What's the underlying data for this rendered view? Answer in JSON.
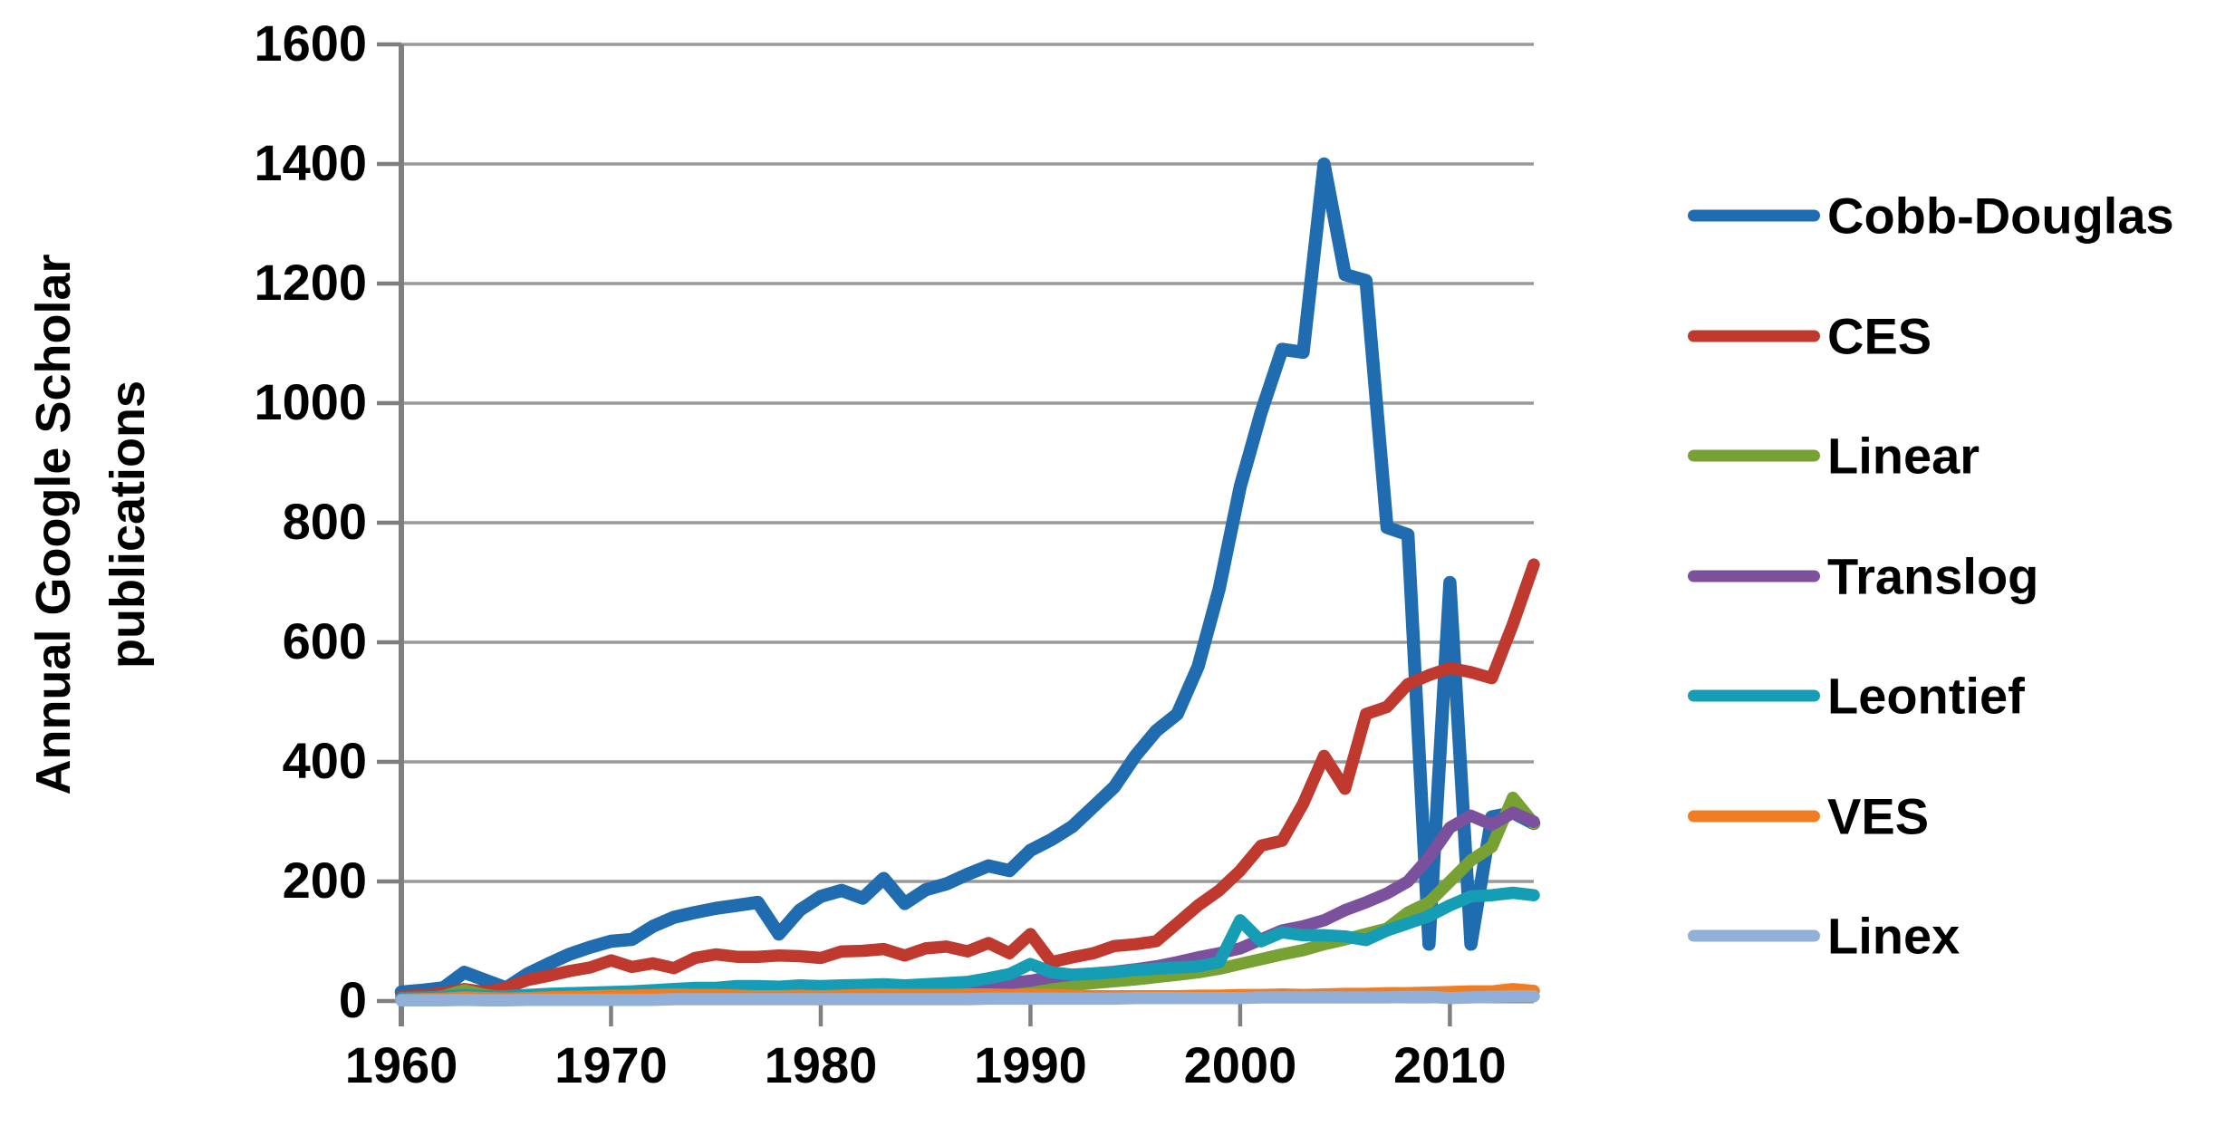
{
  "figure": {
    "kind": "excel-style line chart",
    "background": "#ffffff"
  },
  "colors": {
    "gridline": "#999999",
    "axis": "#7f7f7f",
    "text": "#000000",
    "background": "#ffffff"
  },
  "chart_data": {
    "type": "line",
    "title": "",
    "ylabel_lines": [
      "Annual Google Scholar",
      "publications"
    ],
    "xlabel": "",
    "xlim": [
      1960,
      2014
    ],
    "ylim": [
      0,
      1600
    ],
    "x_ticks": [
      1960,
      1970,
      1980,
      1990,
      2000,
      2010
    ],
    "y_ticks": [
      0,
      200,
      400,
      600,
      800,
      1000,
      1200,
      1400,
      1600
    ],
    "grid": "horizontal",
    "legend_position": "right",
    "x": [
      1960,
      1961,
      1962,
      1963,
      1964,
      1965,
      1966,
      1967,
      1968,
      1969,
      1970,
      1971,
      1972,
      1973,
      1974,
      1975,
      1976,
      1977,
      1978,
      1979,
      1980,
      1981,
      1982,
      1983,
      1984,
      1985,
      1986,
      1987,
      1988,
      1989,
      1990,
      1991,
      1992,
      1993,
      1994,
      1995,
      1996,
      1997,
      1998,
      1999,
      2000,
      2001,
      2002,
      2003,
      2004,
      2005,
      2006,
      2007,
      2008,
      2009,
      2010,
      2011,
      2012,
      2013,
      2014
    ],
    "series": [
      {
        "name": "Cobb-Douglas",
        "color": "#1f6cb0",
        "stroke_width": 14.5,
        "values": [
          15,
          18,
          22,
          48,
          35,
          22,
          45,
          62,
          78,
          90,
          100,
          103,
          125,
          140,
          148,
          155,
          160,
          165,
          112,
          152,
          175,
          185,
          172,
          205,
          163,
          186,
          196,
          212,
          226,
          218,
          252,
          270,
          292,
          325,
          358,
          410,
          452,
          480,
          560,
          690,
          860,
          985,
          1090,
          1085,
          1400,
          1215,
          1205,
          792,
          780,
          95,
          700,
          95,
          308,
          315,
          297
        ]
      },
      {
        "name": "CES",
        "color": "#c0392e",
        "stroke_width": 13.5,
        "values": [
          8,
          10,
          13,
          20,
          15,
          22,
          35,
          42,
          50,
          56,
          68,
          57,
          63,
          55,
          72,
          78,
          74,
          74,
          76,
          75,
          72,
          83,
          84,
          87,
          76,
          88,
          91,
          83,
          97,
          80,
          112,
          65,
          73,
          80,
          92,
          95,
          100,
          130,
          160,
          185,
          218,
          260,
          268,
          330,
          410,
          355,
          480,
          492,
          530,
          545,
          557,
          550,
          540,
          630,
          730
        ]
      },
      {
        "name": "Linear",
        "color": "#77a233",
        "stroke_width": 13.5,
        "values": [
          3,
          4,
          8,
          18,
          10,
          6,
          8,
          9,
          10,
          10,
          12,
          10,
          12,
          14,
          13,
          12,
          13,
          14,
          13,
          15,
          14,
          15,
          16,
          18,
          16,
          18,
          20,
          22,
          24,
          26,
          25,
          28,
          27,
          30,
          33,
          36,
          40,
          44,
          48,
          54,
          62,
          70,
          78,
          85,
          95,
          103,
          112,
          121,
          148,
          165,
          200,
          235,
          258,
          340,
          297
        ]
      },
      {
        "name": "Translog",
        "color": "#7b519e",
        "stroke_width": 13.5,
        "values": [
          2,
          2,
          3,
          5,
          4,
          4,
          5,
          6,
          7,
          8,
          9,
          9,
          10,
          11,
          12,
          12,
          13,
          14,
          15,
          16,
          18,
          19,
          20,
          21,
          20,
          22,
          23,
          25,
          27,
          30,
          34,
          40,
          44,
          46,
          49,
          53,
          58,
          65,
          73,
          80,
          88,
          103,
          118,
          125,
          135,
          152,
          165,
          180,
          200,
          240,
          290,
          310,
          295,
          315,
          300
        ]
      },
      {
        "name": "Leontief",
        "color": "#149db4",
        "stroke_width": 13.5,
        "values": [
          5,
          6,
          7,
          10,
          8,
          8,
          10,
          12,
          13,
          14,
          15,
          16,
          18,
          20,
          22,
          22,
          25,
          25,
          24,
          26,
          25,
          26,
          27,
          28,
          26,
          28,
          30,
          32,
          38,
          45,
          62,
          48,
          44,
          46,
          48,
          52,
          54,
          56,
          58,
          65,
          135,
          100,
          115,
          110,
          110,
          108,
          102,
          118,
          130,
          142,
          160,
          175,
          177,
          181,
          177
        ]
      },
      {
        "name": "VES",
        "color": "#f07d22",
        "stroke_width": 13.5,
        "values": [
          2,
          3,
          4,
          6,
          5,
          4,
          5,
          6,
          7,
          8,
          9,
          9,
          10,
          11,
          10,
          10,
          9,
          8,
          8,
          9,
          8,
          9,
          10,
          11,
          10,
          10,
          10,
          11,
          11,
          10,
          11,
          10,
          9,
          8,
          8,
          8,
          8,
          8,
          9,
          9,
          10,
          10,
          11,
          10,
          11,
          12,
          12,
          13,
          13,
          14,
          15,
          16,
          16,
          20,
          17
        ]
      },
      {
        "name": "Linex",
        "color": "#92afd7",
        "stroke_width": 13.5,
        "values": [
          1,
          1,
          1,
          2,
          1,
          1,
          2,
          2,
          2,
          2,
          2,
          2,
          2,
          3,
          3,
          3,
          3,
          3,
          3,
          3,
          3,
          3,
          3,
          3,
          3,
          3,
          3,
          3,
          4,
          4,
          4,
          4,
          4,
          4,
          4,
          5,
          5,
          5,
          5,
          5,
          5,
          6,
          6,
          6,
          6,
          6,
          6,
          6,
          7,
          7,
          5,
          6,
          7,
          8,
          8
        ]
      }
    ]
  }
}
